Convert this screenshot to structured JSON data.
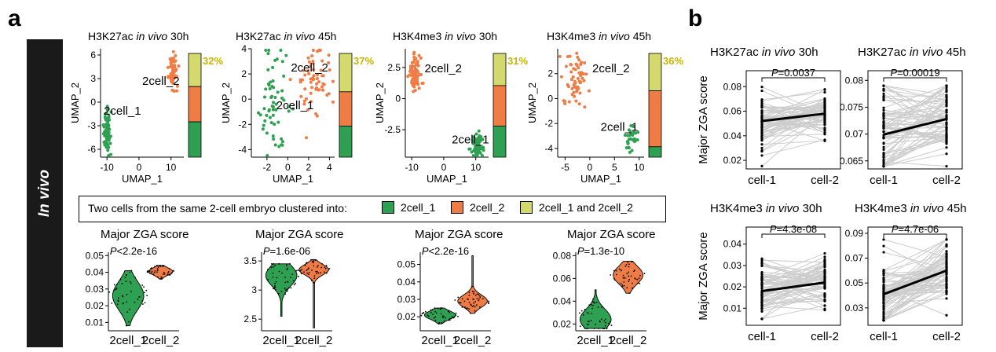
{
  "panel_labels": {
    "a": "a",
    "b": "b"
  },
  "side_label": "In vivo",
  "colors": {
    "green": "#2ea052",
    "orange": "#f07c45",
    "yellow": "#d3d96c",
    "grey": "#cccccc",
    "gold": "#c7b500"
  },
  "legend": {
    "title": "Two cells from the same 2-cell embryo clustered into:",
    "items": [
      {
        "label": "2cell_1",
        "color": "#2ea052"
      },
      {
        "label": "2cell_2",
        "color": "#f07c45"
      },
      {
        "label": "2cell_1 and 2cell_2",
        "color": "#d3d96c"
      }
    ]
  },
  "chart_data": [
    {
      "type": "scatter",
      "id": "umap1",
      "title": [
        "H3K27ac ",
        "in vivo",
        " 30h"
      ],
      "xlabel": "UMAP_1",
      "ylabel": "UMAP_2",
      "xlim": [
        -12,
        14
      ],
      "ylim": [
        -7,
        6.8
      ],
      "xticks": [
        -10,
        0,
        10
      ],
      "yticks": [
        -6,
        -3,
        0,
        3,
        6
      ],
      "clusters": [
        {
          "name": "2cell_1",
          "cx": -10,
          "cy": -4,
          "sx": 0.5,
          "sy": 1.3,
          "n": 70,
          "color": "#2ea052"
        },
        {
          "name": "2cell_2",
          "cx": 10.5,
          "cy": 4,
          "sx": 0.7,
          "sy": 1.0,
          "n": 70,
          "color": "#f07c45"
        }
      ],
      "labels": [
        {
          "text": "2cell_1",
          "x": -11,
          "y": -1.6
        },
        {
          "text": "2cell_2",
          "x": 1,
          "y": 2.2
        }
      ],
      "bar": {
        "pct_label": "32%",
        "green": 0.34,
        "orange": 0.34,
        "yellow": 0.32
      }
    },
    {
      "type": "scatter",
      "id": "umap2",
      "title": [
        "H3K27ac ",
        "in vivo",
        " 45h"
      ],
      "xlabel": "UMAP_1",
      "ylabel": "UMAP_2",
      "xlim": [
        -3.5,
        4.5
      ],
      "ylim": [
        -4.6,
        4
      ],
      "xticks": [
        -2,
        0,
        2,
        4
      ],
      "yticks": [
        -4,
        -2,
        0,
        2,
        4
      ],
      "clusters": [
        {
          "name": "2cell_1",
          "cx": -1.5,
          "cy": 0,
          "sx": 0.7,
          "sy": 1.9,
          "n": 60,
          "color": "#2ea052"
        },
        {
          "name": "2cell_2",
          "cx": 2.5,
          "cy": 1.4,
          "sx": 0.7,
          "sy": 1.3,
          "n": 60,
          "color": "#f07c45"
        }
      ],
      "labels": [
        {
          "text": "2cell_1",
          "x": -1.1,
          "y": -0.8
        },
        {
          "text": "2cell_2",
          "x": 0.3,
          "y": 2.2
        }
      ],
      "bar": {
        "pct_label": "37%",
        "green": 0.3,
        "orange": 0.33,
        "yellow": 0.37
      }
    },
    {
      "type": "scatter",
      "id": "umap3",
      "title": [
        "H3K4me3 ",
        "in vivo",
        " 30h"
      ],
      "xlabel": "UMAP_1",
      "ylabel": "UMAP_2",
      "xlim": [
        -12,
        14
      ],
      "ylim": [
        -4.7,
        4
      ],
      "xticks": [
        -10,
        0,
        10
      ],
      "yticks": [
        -2.5,
        0,
        2.5
      ],
      "clusters": [
        {
          "name": "2cell_2",
          "cx": -9,
          "cy": 2.1,
          "sx": 0.9,
          "sy": 0.6,
          "n": 80,
          "color": "#f07c45"
        },
        {
          "name": "2cell_1",
          "cx": 10.5,
          "cy": -3.8,
          "sx": 1.0,
          "sy": 0.5,
          "n": 60,
          "color": "#2ea052"
        }
      ],
      "labels": [
        {
          "text": "2cell_2",
          "x": -6,
          "y": 2.1
        },
        {
          "text": "2cell_1",
          "x": 2.5,
          "y": -3.6
        }
      ],
      "bar": {
        "pct_label": "31%",
        "green": 0.3,
        "orange": 0.39,
        "yellow": 0.31
      }
    },
    {
      "type": "scatter",
      "id": "umap4",
      "title": [
        "H3K4me3 ",
        "in vivo",
        " 45h"
      ],
      "xlabel": "UMAP_1",
      "ylabel": "UMAP_2",
      "xlim": [
        -6.5,
        11
      ],
      "ylim": [
        -4.7,
        4
      ],
      "xticks": [
        -5,
        0,
        5,
        10
      ],
      "yticks": [
        -4,
        -2,
        0,
        2
      ],
      "clusters": [
        {
          "name": "2cell_2",
          "cx": -3,
          "cy": 1.3,
          "sx": 1.2,
          "sy": 1.3,
          "n": 60,
          "color": "#f07c45"
        },
        {
          "name": "2cell_1",
          "cx": 8.5,
          "cy": -3.3,
          "sx": 0.6,
          "sy": 0.5,
          "n": 30,
          "color": "#2ea052"
        }
      ],
      "labels": [
        {
          "text": "2cell_2",
          "x": 0.5,
          "y": 2.1
        },
        {
          "text": "2cell_1",
          "x": 2.2,
          "y": -2.6
        }
      ],
      "bar": {
        "pct_label": "36%",
        "green": 0.1,
        "orange": 0.54,
        "yellow": 0.36
      }
    },
    {
      "type": "violin",
      "id": "vio1",
      "title": "Major ZGA score",
      "pval": [
        "P",
        "<2.2e-16"
      ],
      "categories": [
        "2cell_1",
        "2cell_2"
      ],
      "ylim": [
        0.005,
        0.052
      ],
      "yticks": [
        0.01,
        0.02,
        0.03,
        0.04,
        0.05
      ],
      "violins": [
        {
          "mean": 0.026,
          "sd": 0.0085,
          "range": [
            0.008,
            0.041
          ],
          "width": 0.42,
          "color": "#2ea052"
        },
        {
          "mean": 0.0405,
          "sd": 0.0022,
          "range": [
            0.036,
            0.044
          ],
          "width": 0.32,
          "color": "#f07c45"
        }
      ]
    },
    {
      "type": "violin",
      "id": "vio2",
      "title": "Major ZGA score",
      "pval": [
        "P",
        "=1.6e-06"
      ],
      "categories": [
        "2cell_1",
        "2cell_2"
      ],
      "ylim": [
        2.3,
        3.65
      ],
      "yticks": [
        2.5,
        3.0,
        3.5
      ],
      "violins": [
        {
          "mean": 3.25,
          "sd": 0.18,
          "range": [
            2.55,
            3.45
          ],
          "width": 0.42,
          "color": "#2ea052"
        },
        {
          "mean": 3.35,
          "sd": 0.09,
          "range": [
            2.35,
            3.52
          ],
          "width": 0.4,
          "color": "#f07c45"
        }
      ]
    },
    {
      "type": "violin",
      "id": "vio3",
      "title": "Major ZGA score",
      "pval": [
        "P",
        "<2.2e-16"
      ],
      "categories": [
        "2cell_1",
        "2cell_2"
      ],
      "ylim": [
        0.012,
        0.057
      ],
      "yticks": [
        0.02,
        0.03,
        0.04,
        0.05
      ],
      "violins": [
        {
          "mean": 0.021,
          "sd": 0.0025,
          "range": [
            0.016,
            0.025
          ],
          "width": 0.42,
          "color": "#2ea052"
        },
        {
          "mean": 0.029,
          "sd": 0.0035,
          "range": [
            0.022,
            0.055
          ],
          "width": 0.4,
          "color": "#f07c45"
        }
      ]
    },
    {
      "type": "violin",
      "id": "vio4",
      "title": "Major ZGA score",
      "pval": [
        "P",
        "=1.3e-10"
      ],
      "categories": [
        "2cell_1",
        "2cell_2"
      ],
      "ylim": [
        0.014,
        0.083
      ],
      "yticks": [
        0.02,
        0.04,
        0.06,
        0.08
      ],
      "violins": [
        {
          "mean": 0.024,
          "sd": 0.009,
          "range": [
            0.016,
            0.05
          ],
          "width": 0.42,
          "color": "#2ea052"
        },
        {
          "mean": 0.063,
          "sd": 0.008,
          "range": [
            0.047,
            0.075
          ],
          "width": 0.4,
          "color": "#f07c45"
        }
      ]
    },
    {
      "type": "line",
      "id": "pair1",
      "title": [
        "H3K27ac ",
        "in vivo",
        " 30h"
      ],
      "ylabel": "Major ZGA score",
      "pval": [
        "P",
        "=0.0037"
      ],
      "categories": [
        "cell-1",
        "cell-2"
      ],
      "ylim": [
        0.013,
        0.093
      ],
      "yticks": [
        0.02,
        0.04,
        0.06,
        0.08
      ],
      "mean": [
        0.052,
        0.058
      ],
      "spread": [
        0.009,
        0.006
      ],
      "range": [
        0.012,
        0.085
      ],
      "n": 70
    },
    {
      "type": "line",
      "id": "pair2",
      "title": [
        "H3K27ac ",
        "in vivo",
        " 45h"
      ],
      "ylabel": "",
      "pval": [
        "P",
        "=0.00019"
      ],
      "categories": [
        "cell-1",
        "cell-2"
      ],
      "ylim": [
        0.0635,
        0.0818
      ],
      "yticks": [
        0.065,
        0.07,
        0.075,
        0.08
      ],
      "mean": [
        0.0699,
        0.0728
      ],
      "spread": [
        0.0035,
        0.0028
      ],
      "range": [
        0.064,
        0.079
      ],
      "n": 70
    },
    {
      "type": "line",
      "id": "pair3",
      "title": [
        "H3K4me3 ",
        "in vivo",
        " 30h"
      ],
      "ylabel": "Major ZGA score",
      "pval": [
        "P",
        "=4.3e-08"
      ],
      "categories": [
        "cell-1",
        "cell-2"
      ],
      "ylim": [
        0.002,
        0.048
      ],
      "yticks": [
        0.01,
        0.02,
        0.03,
        0.04
      ],
      "mean": [
        0.018,
        0.022
      ],
      "spread": [
        0.005,
        0.004
      ],
      "range": [
        0.005,
        0.04
      ],
      "n": 70
    },
    {
      "type": "line",
      "id": "pair4",
      "title": [
        "H3K4me3 ",
        "in vivo",
        " 45h"
      ],
      "ylabel": "",
      "pval": [
        "P",
        "=4.7e-06"
      ],
      "categories": [
        "cell-1",
        "cell-2"
      ],
      "ylim": [
        0.016,
        0.095
      ],
      "yticks": [
        0.03,
        0.05,
        0.07,
        0.09
      ],
      "mean": [
        0.041,
        0.06
      ],
      "spread": [
        0.012,
        0.008
      ],
      "range": [
        0.02,
        0.085
      ],
      "n": 70
    }
  ]
}
